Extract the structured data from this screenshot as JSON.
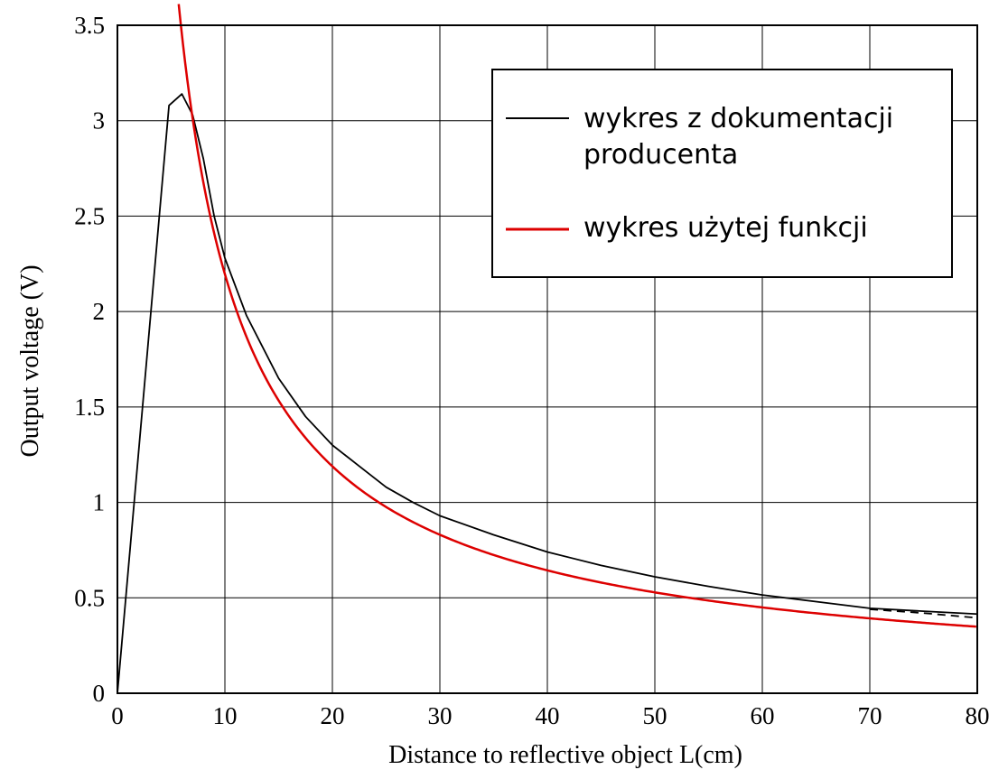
{
  "chart_data": {
    "type": "line",
    "title": "",
    "xlabel": "Distance to reflective object L(cm)",
    "ylabel": "Output voltage (V)",
    "xlim": [
      0,
      80
    ],
    "ylim": [
      0,
      3.5
    ],
    "grid": true,
    "legend_position": "top-right",
    "x_ticks": [
      "0",
      "10",
      "20",
      "30",
      "40",
      "50",
      "60",
      "70",
      "80"
    ],
    "y_ticks": [
      "0",
      "0.5",
      "1",
      "1.5",
      "2",
      "2.5",
      "3",
      "3.5"
    ],
    "legend": {
      "line1": "wykres z dokumentacji",
      "line2": "producenta",
      "line3": "wykres użytej funkcji"
    },
    "series": [
      {
        "color": "#000000",
        "points": [
          [
            0,
            0
          ],
          [
            4.8,
            3.08
          ],
          [
            6,
            3.14
          ],
          [
            7,
            3.03
          ],
          [
            8,
            2.8
          ],
          [
            9,
            2.5
          ],
          [
            10,
            2.28
          ],
          [
            12,
            1.98
          ],
          [
            15,
            1.65
          ],
          [
            17.5,
            1.45
          ],
          [
            20,
            1.3
          ],
          [
            22.5,
            1.19
          ],
          [
            25,
            1.08
          ],
          [
            27.5,
            1.0
          ],
          [
            30,
            0.93
          ],
          [
            35,
            0.83
          ],
          [
            40,
            0.74
          ],
          [
            45,
            0.67
          ],
          [
            50,
            0.61
          ],
          [
            55,
            0.56
          ],
          [
            60,
            0.515
          ],
          [
            65,
            0.48
          ],
          [
            70,
            0.445
          ],
          [
            75,
            0.43
          ],
          [
            80,
            0.415
          ]
        ]
      },
      {
        "color": "#000000",
        "style": "dashed",
        "points": [
          [
            70,
            0.44
          ],
          [
            75,
            0.42
          ],
          [
            80,
            0.395
          ]
        ]
      },
      {
        "color": "#dd0000",
        "function": "a/x^b",
        "a": 16.85,
        "b": 0.885,
        "x_range": [
          5.7,
          80
        ]
      }
    ]
  }
}
